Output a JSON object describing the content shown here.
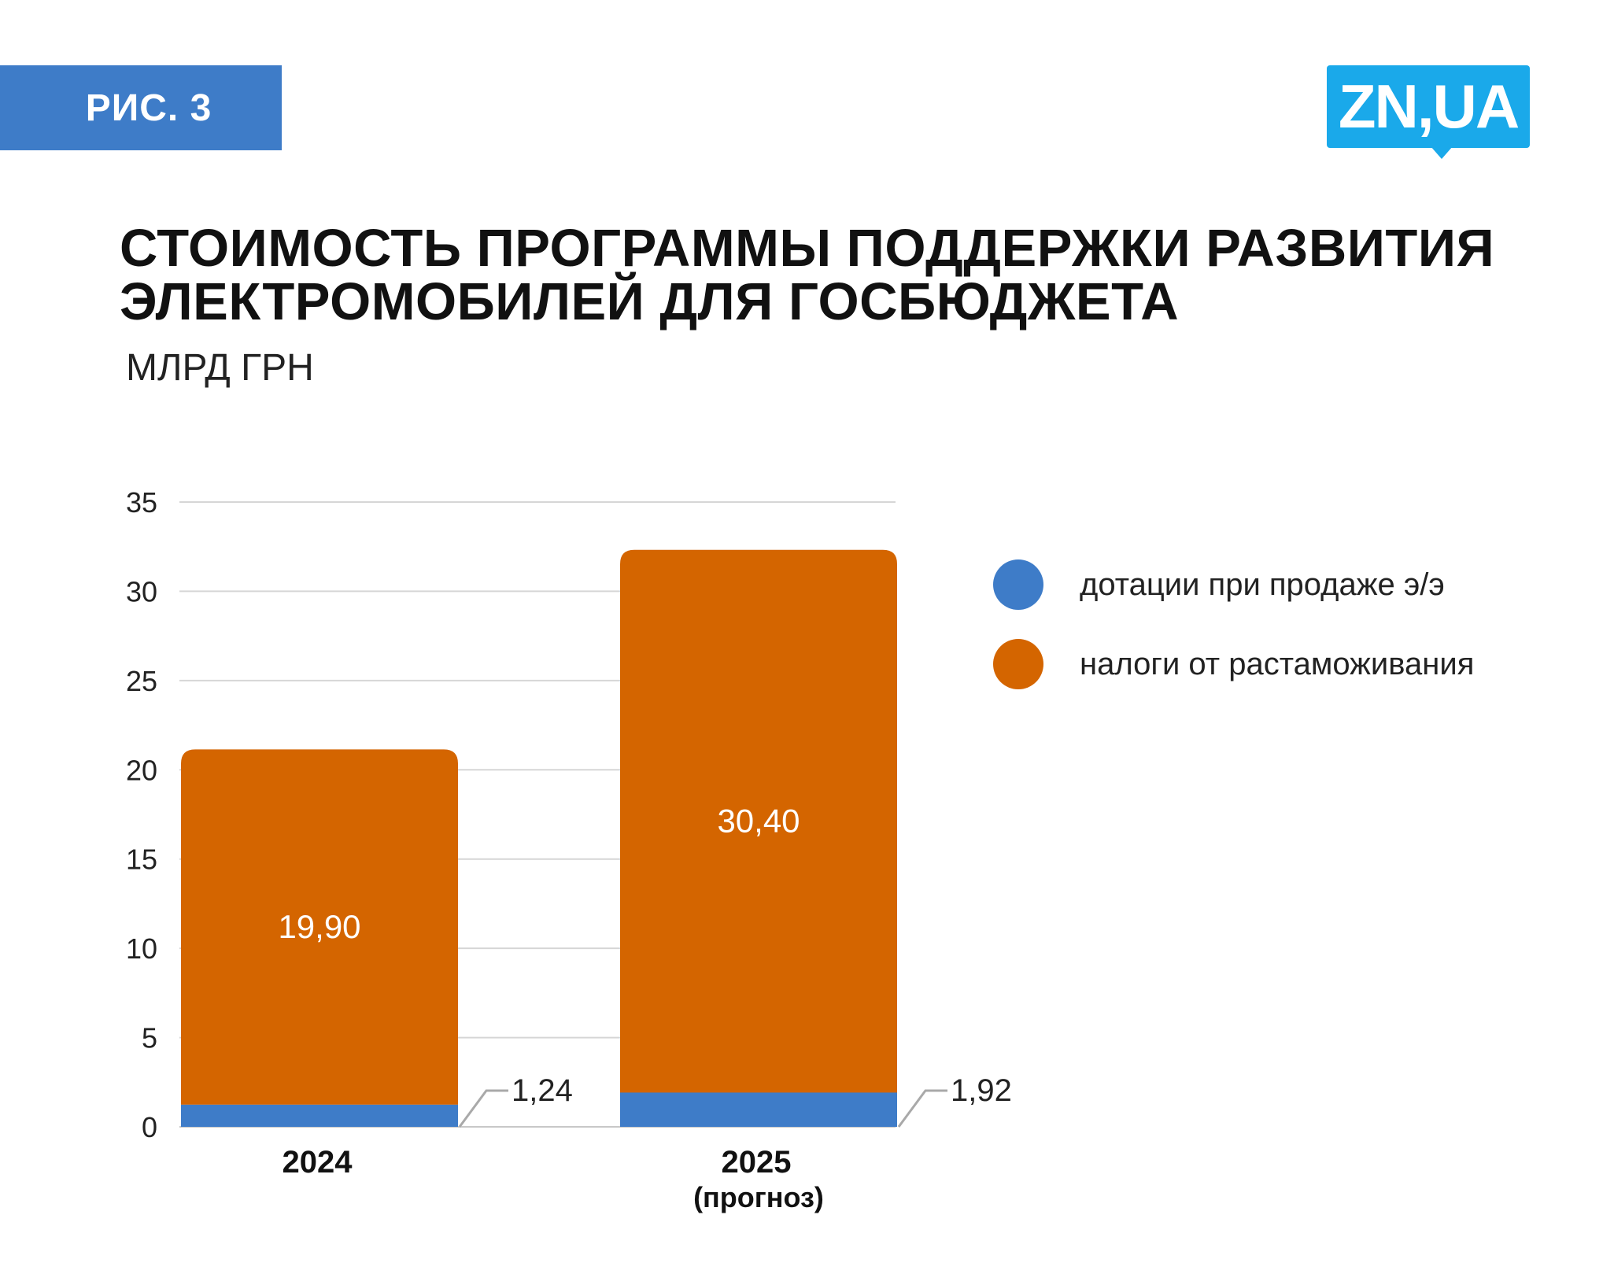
{
  "header": {
    "figure_label": "РИС. 3",
    "logo_text": "ZN,UA",
    "title": "СТОИМОСТЬ ПРОГРАММЫ ПОДДЕРЖКИ РАЗВИТИЯ ЭЛЕКТРОМОБИЛЕЙ ДЛЯ ГОСБЮДЖЕТА",
    "unit": "МЛРД ГРН"
  },
  "colors": {
    "accent_blue": "#3e7cc8",
    "bar_orange": "#d46500",
    "logo_blue": "#1aa9ea"
  },
  "chart_data": {
    "type": "bar",
    "stacked": true,
    "categories": [
      {
        "label": "2024",
        "sublabel": ""
      },
      {
        "label": "2025",
        "sublabel": "(прогноз)"
      }
    ],
    "series": [
      {
        "name": "дотации при продаже э/э",
        "color": "#3e7cc8",
        "values": [
          1.24,
          1.92
        ],
        "value_labels": [
          "1,24",
          "1,92"
        ]
      },
      {
        "name": "налоги от растаможивания",
        "color": "#d46500",
        "values": [
          19.9,
          30.4
        ],
        "value_labels": [
          "19,90",
          "30,40"
        ]
      }
    ],
    "ylim": [
      0,
      35
    ],
    "yticks": [
      0,
      5,
      10,
      15,
      20,
      25,
      30,
      35
    ],
    "grid": true,
    "legend_position": "right"
  }
}
